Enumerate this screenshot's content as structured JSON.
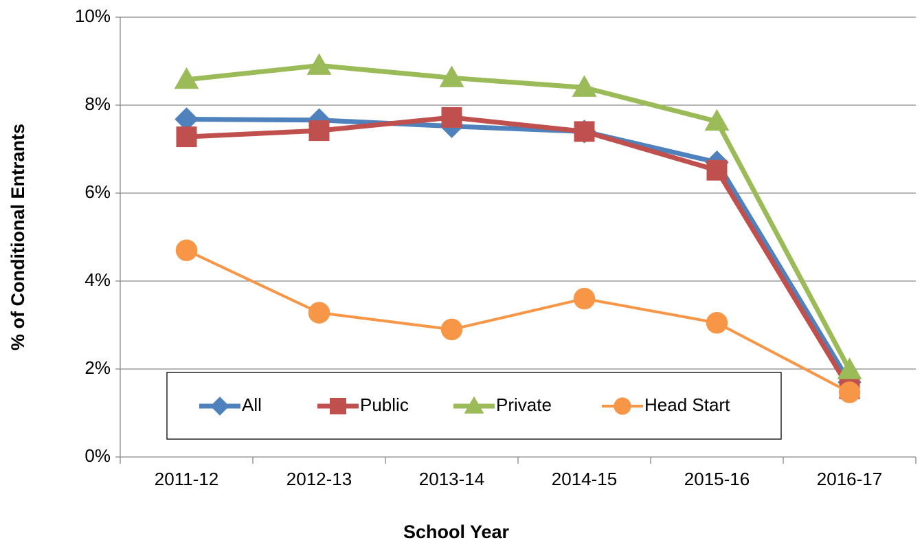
{
  "chart_data": {
    "type": "line",
    "x_label": "School Year",
    "y_label": "% of Conditional Entrants",
    "categories": [
      "2011-12",
      "2012-13",
      "2013-14",
      "2014-15",
      "2015-16",
      "2016-17"
    ],
    "series": [
      {
        "name": "All",
        "color": "#4f81bd",
        "marker": "diamond",
        "values": [
          7.68,
          7.66,
          7.52,
          7.4,
          6.7,
          1.7
        ]
      },
      {
        "name": "Public",
        "color": "#c0504d",
        "marker": "square",
        "values": [
          7.28,
          7.42,
          7.72,
          7.4,
          6.52,
          1.55
        ]
      },
      {
        "name": "Private",
        "color": "#9bbb59",
        "marker": "triangle",
        "values": [
          8.58,
          8.9,
          8.62,
          8.4,
          7.63,
          1.98
        ]
      },
      {
        "name": "Head Start",
        "color": "#f79646",
        "marker": "circle",
        "values": [
          4.7,
          3.28,
          2.9,
          3.6,
          3.05,
          1.47
        ]
      }
    ],
    "ylim": [
      0,
      10
    ],
    "yticks": [
      {
        "value": 0,
        "label": "0%"
      },
      {
        "value": 2,
        "label": "2%"
      },
      {
        "value": 4,
        "label": "4%"
      },
      {
        "value": 6,
        "label": "6%"
      },
      {
        "value": 8,
        "label": "8%"
      },
      {
        "value": 10,
        "label": "10%"
      }
    ],
    "grid": true,
    "legend": "lower center"
  }
}
